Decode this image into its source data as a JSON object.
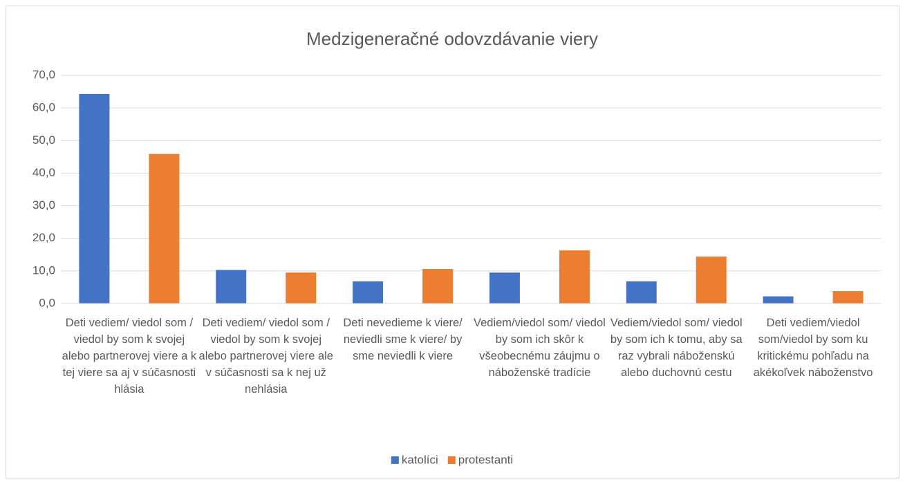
{
  "chart_data": {
    "type": "bar",
    "title": "Medzigeneračné odovzdávanie viery",
    "categories": [
      "Deti vediem/ viedol som / viedol by som k svojej alebo partnerovej viere a k tej viere sa aj v súčasnosti hlásia",
      "Deti vediem/ viedol som / viedol by som k svojej alebo partnerovej viere ale v súčasnosti sa k nej už nehlásia",
      "Deti nevedieme k viere/ neviedli sme k viere/ by sme neviedli k viere",
      "Vediem/viedol som/ viedol by som ich skôr k všeobecnému záujmu o náboženské tradície",
      "Vediem/viedol som/ viedol by som ich k tomu, aby sa raz vybrali náboženskú alebo duchovnú cestu",
      "Deti vediem/viedol som/viedol by som ku kritickému pohľadu na akékoľvek náboženstvo"
    ],
    "series": [
      {
        "name": "katolíci",
        "color": "#4472c4",
        "values": [
          64.3,
          10.3,
          6.8,
          9.5,
          6.8,
          2.2
        ]
      },
      {
        "name": "protestanti",
        "color": "#ed7d31",
        "values": [
          45.9,
          9.5,
          10.6,
          16.3,
          14.4,
          3.8
        ]
      }
    ],
    "ylim": [
      0,
      70
    ],
    "yticks": [
      {
        "value": 0,
        "label": "0,0"
      },
      {
        "value": 10,
        "label": "10,0"
      },
      {
        "value": 20,
        "label": "20,0"
      },
      {
        "value": 30,
        "label": "30,0"
      },
      {
        "value": 40,
        "label": "40,0"
      },
      {
        "value": 50,
        "label": "50,0"
      },
      {
        "value": 60,
        "label": "60,0"
      },
      {
        "value": 70,
        "label": "70,0"
      }
    ],
    "grid": true,
    "legend": "bottom"
  }
}
